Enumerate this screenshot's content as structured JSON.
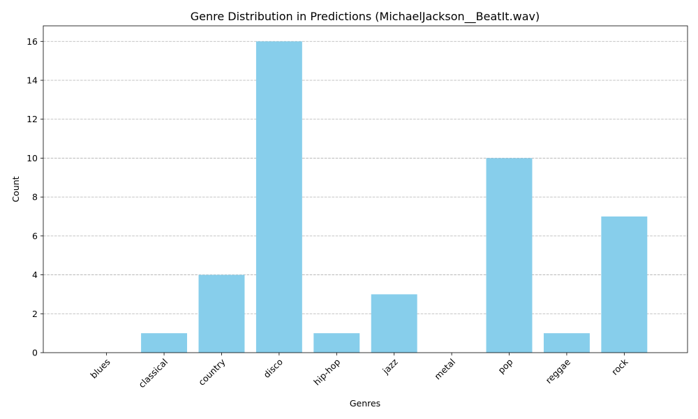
{
  "chart_data": {
    "type": "bar",
    "title": "Genre Distribution in Predictions (MichaelJackson__BeatIt.wav)",
    "xlabel": "Genres",
    "ylabel": "Count",
    "categories": [
      "blues",
      "classical",
      "country",
      "disco",
      "hip-hop",
      "jazz",
      "metal",
      "pop",
      "reggae",
      "rock"
    ],
    "values": [
      0,
      1,
      4,
      16,
      1,
      3,
      0,
      10,
      1,
      7
    ],
    "ylim": [
      0,
      16.8
    ],
    "yticks": [
      0,
      2,
      4,
      6,
      8,
      10,
      12,
      14,
      16
    ],
    "bar_color": "#87ceeb",
    "grid": "y-dashed",
    "x_tick_rotation": 45
  }
}
